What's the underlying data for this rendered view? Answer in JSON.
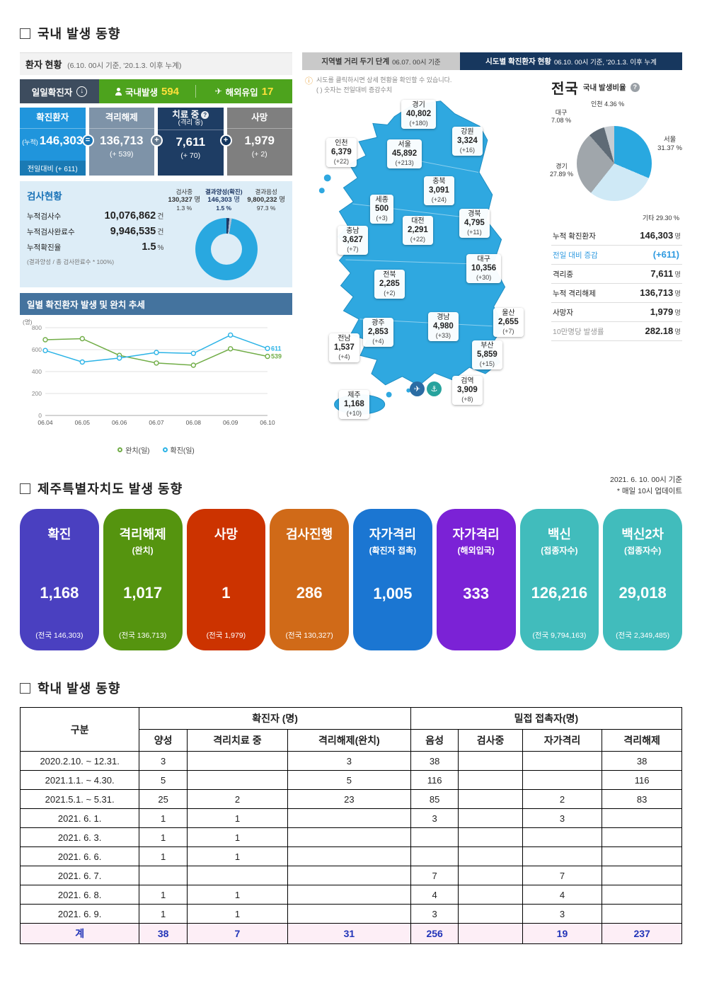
{
  "icons": {
    "down_arrow": "↓",
    "airplane": "✈",
    "ship": "⚓",
    "help": "?",
    "info": "ⓘ",
    "equals_badge": "=",
    "plus_badge": "+"
  },
  "domestic": {
    "heading": "국내 발생 동향",
    "patient_panel": {
      "title": "환자 현황",
      "title_note": "(6.10. 00시 기준, '20.1.3. 이후 누계)",
      "daily_label": "일일확진자",
      "domestic_label": "국내발생",
      "domestic_value": "594",
      "overseas_label": "해외유입",
      "overseas_value": "17",
      "cards": [
        {
          "label": "확진환자",
          "prefix": "(누적)",
          "value": "146,303",
          "delta": "전일대비 (+ 611)",
          "color": "#2095dc"
        },
        {
          "label": "격리해제",
          "value": "136,713",
          "delta": "(+ 539)",
          "color": "#7e93a8"
        },
        {
          "label": "치료 중",
          "label2": "(격리 중)",
          "value": "7,611",
          "delta": "(+ 70)",
          "color": "#1e3d64"
        },
        {
          "label": "사망",
          "value": "1,979",
          "delta": "(+ 2)",
          "color": "#7f7f7f"
        }
      ],
      "test_status": {
        "title": "검사현황",
        "rows": [
          {
            "label": "누적검사수",
            "value": "10,076,862",
            "unit": "건"
          },
          {
            "label": "누적검사완료수",
            "value": "9,946,535",
            "unit": "건"
          },
          {
            "label": "누적확진율",
            "value": "1.5",
            "unit": "%"
          }
        ],
        "note": "(결과양성 / 총 검사완료수 * 100%)"
      },
      "trend_title": "일별 확진환자 발생 및 완치 추세"
    },
    "map_panel": {
      "tab_distancing": "지역별 거리 두기 단계",
      "tab_distancing_note": "06.07. 00시 기준",
      "tab_region": "시도별 확진환자 현황",
      "tab_region_note": "06.10. 00시 기준, '20.1.3. 이후 누계",
      "note1": "시도를 클릭하시면 상세 현황을 확인할 수 있습니다.",
      "note2": "( ) 숫자는 전일대비 증감수치",
      "regions": [
        {
          "id": "gyeonggi",
          "name": "경기",
          "value": "40,802",
          "delta": "(+180)"
        },
        {
          "id": "gangwon",
          "name": "강원",
          "value": "3,324",
          "delta": "(+16)"
        },
        {
          "id": "seoul",
          "name": "서울",
          "value": "45,892",
          "delta": "(+213)"
        },
        {
          "id": "incheon",
          "name": "인천",
          "value": "6,379",
          "delta": "(+22)"
        },
        {
          "id": "chungbuk",
          "name": "충북",
          "value": "3,091",
          "delta": "(+24)"
        },
        {
          "id": "sejong",
          "name": "세종",
          "value": "500",
          "delta": "(+3)"
        },
        {
          "id": "daejeon",
          "name": "대전",
          "value": "2,291",
          "delta": "(+22)"
        },
        {
          "id": "gyeongbuk",
          "name": "경북",
          "value": "4,795",
          "delta": "(+11)"
        },
        {
          "id": "chungnam",
          "name": "충남",
          "value": "3,627",
          "delta": "(+7)"
        },
        {
          "id": "daegu",
          "name": "대구",
          "value": "10,356",
          "delta": "(+30)"
        },
        {
          "id": "jeonbuk",
          "name": "전북",
          "value": "2,285",
          "delta": "(+2)"
        },
        {
          "id": "gyeongnam",
          "name": "경남",
          "value": "4,980",
          "delta": "(+33)"
        },
        {
          "id": "ulsan",
          "name": "울산",
          "value": "2,655",
          "delta": "(+7)"
        },
        {
          "id": "gwangju",
          "name": "광주",
          "value": "2,853",
          "delta": "(+4)"
        },
        {
          "id": "jeonnam",
          "name": "전남",
          "value": "1,537",
          "delta": "(+4)"
        },
        {
          "id": "busan",
          "name": "부산",
          "value": "5,859",
          "delta": "(+15)"
        },
        {
          "id": "jeju",
          "name": "제주",
          "value": "1,168",
          "delta": "(+10)"
        },
        {
          "id": "quarantine",
          "name": "검역",
          "value": "3,909",
          "delta": "(+8)"
        }
      ]
    },
    "national_panel": {
      "title": "전국",
      "subtitle": "국내 발생비율",
      "stats": [
        {
          "label": "누적 확진환자",
          "value": "146,303",
          "unit": "명"
        },
        {
          "label": "전일 대비 증감",
          "value": "(+611)",
          "unit": ""
        },
        {
          "label": "격리중",
          "value": "7,611",
          "unit": "명"
        },
        {
          "label": "누적 격리해제",
          "value": "136,713",
          "unit": "명"
        },
        {
          "label": "사망자",
          "value": "1,979",
          "unit": "명"
        },
        {
          "label": "10만명당 발생률",
          "value": "282.18",
          "unit": "명"
        }
      ]
    }
  },
  "jeju": {
    "heading": "제주특별자치도 발생 동향",
    "asof": "2021. 6. 10. 00시 기준",
    "update_note": "* 매일 10시 업데이트",
    "cards": [
      {
        "title": "확진",
        "subtitle": "",
        "value": "1,168",
        "note": "(전국 146,303)",
        "color": "#4a40c0"
      },
      {
        "title": "격리해제",
        "subtitle": "(완치)",
        "value": "1,017",
        "note": "(전국 136,713)",
        "color": "#55940f"
      },
      {
        "title": "사망",
        "subtitle": "",
        "value": "1",
        "note": "(전국 1,979)",
        "color": "#cc3300"
      },
      {
        "title": "검사진행",
        "subtitle": "",
        "value": "286",
        "note": "(전국 130,327)",
        "color": "#d06a18"
      },
      {
        "title": "자가격리",
        "subtitle": "(확진자 접촉)",
        "value": "1,005",
        "note": "",
        "color": "#1b76d2"
      },
      {
        "title": "자가격리",
        "subtitle": "(해외입국)",
        "value": "333",
        "note": "",
        "color": "#7b22d6"
      },
      {
        "title": "백신",
        "subtitle": "(접종자수)",
        "value": "126,216",
        "note": "(전국 9,794,163)",
        "color": "#41bcbc"
      },
      {
        "title": "백신2차",
        "subtitle": "(접종자수)",
        "value": "29,018",
        "note": "(전국 2,349,485)",
        "color": "#41bcbc"
      }
    ]
  },
  "school": {
    "heading": "학내 발생 동향",
    "header": {
      "col_category": "구분",
      "group_confirmed": "확진자 (명)",
      "group_contact": "밀접 접촉자(명)",
      "sub": [
        "양성",
        "격리치료 중",
        "격리해제(완치)",
        "음성",
        "검사중",
        "자가격리",
        "격리해제"
      ]
    },
    "rows": [
      {
        "label": "2020.2.10.  ~ 12.31.",
        "cells": [
          "3",
          "",
          "3",
          "38",
          "",
          "",
          "38"
        ]
      },
      {
        "label": "2021.1.1.  ~  4.30.",
        "cells": [
          "5",
          "",
          "5",
          "116",
          "",
          "",
          "116"
        ]
      },
      {
        "label": "2021.5.1.  ~  5.31.",
        "cells": [
          "25",
          "2",
          "23",
          "85",
          "",
          "2",
          "83"
        ]
      },
      {
        "label": "2021. 6. 1.",
        "cells": [
          "1",
          "1",
          "",
          "3",
          "",
          "3",
          ""
        ]
      },
      {
        "label": "2021. 6. 3.",
        "cells": [
          "1",
          "1",
          "",
          "",
          "",
          "",
          ""
        ]
      },
      {
        "label": "2021. 6. 6.",
        "cells": [
          "1",
          "1",
          "",
          "",
          "",
          "",
          ""
        ]
      },
      {
        "label": "2021. 6. 7.",
        "cells": [
          "",
          "",
          "",
          "7",
          "",
          "7",
          ""
        ]
      },
      {
        "label": "2021. 6. 8.",
        "cells": [
          "1",
          "1",
          "",
          "4",
          "",
          "4",
          ""
        ]
      },
      {
        "label": "2021. 6. 9.",
        "cells": [
          "1",
          "1",
          "",
          "3",
          "",
          "3",
          ""
        ]
      }
    ],
    "total": {
      "label": "계",
      "cells": [
        "38",
        "7",
        "31",
        "256",
        "",
        "19",
        "237"
      ]
    }
  },
  "chart_data": [
    {
      "id": "test_result_donut",
      "type": "pie",
      "title": "검사현황 결과 분포",
      "slices": [
        {
          "label": "결과양성(확진)",
          "value": "146,303",
          "unit": "명",
          "pct": 1.5,
          "pct_label": "1.5 %",
          "color": "#1f3864"
        },
        {
          "label": "검사중",
          "value": "130,327",
          "unit": "명",
          "pct": 1.3,
          "pct_label": "1.3 %",
          "color": "#aebfd4"
        },
        {
          "label": "결과음성",
          "value": "9,800,232",
          "unit": "명",
          "pct": 97.3,
          "pct_label": "97.3 %",
          "color": "#29a8e0"
        }
      ]
    },
    {
      "id": "daily_trend",
      "type": "line",
      "title": "일별 확진환자 발생 및 완치 추세",
      "ylabel": "(명)",
      "ylim": [
        0,
        800
      ],
      "yticks": [
        0,
        200,
        400,
        600,
        800
      ],
      "x": [
        "06.04",
        "06.05",
        "06.06",
        "06.07",
        "06.08",
        "06.09",
        "06.10"
      ],
      "series": [
        {
          "name": "완치(일)",
          "color": "#71ad47",
          "values": [
            690,
            700,
            548,
            478,
            458,
            608,
            539
          ],
          "end_label": "539"
        },
        {
          "name": "확진(일)",
          "color": "#2bb3e6",
          "values": [
            592,
            487,
            523,
            574,
            566,
            733,
            611
          ],
          "end_label": "611"
        }
      ],
      "legend_position": "bottom"
    },
    {
      "id": "national_ratio_pie",
      "type": "pie",
      "title": "국내 발생비율",
      "slices": [
        {
          "label": "서울",
          "pct": 31.37,
          "pct_label": "31.37 %",
          "color": "#29a8e0"
        },
        {
          "label": "기타",
          "pct": 29.3,
          "pct_label": "29.30 %",
          "color": "#cfe9f6"
        },
        {
          "label": "경기",
          "pct": 27.89,
          "pct_label": "27.89 %",
          "color": "#a0a6ab"
        },
        {
          "label": "대구",
          "pct": 7.08,
          "pct_label": "7.08 %",
          "color": "#5f6b76"
        },
        {
          "label": "인천",
          "pct": 4.36,
          "pct_label": "4.36 %",
          "color": "#c6ccd2"
        }
      ]
    }
  ]
}
